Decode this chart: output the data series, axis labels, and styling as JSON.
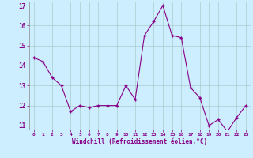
{
  "x": [
    0,
    1,
    2,
    3,
    4,
    5,
    6,
    7,
    8,
    9,
    10,
    11,
    12,
    13,
    14,
    15,
    16,
    17,
    18,
    19,
    20,
    21,
    22,
    23
  ],
  "y": [
    14.4,
    14.2,
    13.4,
    13.0,
    11.7,
    12.0,
    11.9,
    12.0,
    12.0,
    12.0,
    13.0,
    12.3,
    15.5,
    16.2,
    17.0,
    15.5,
    15.4,
    12.9,
    12.4,
    11.0,
    11.3,
    10.7,
    11.4,
    12.0
  ],
  "xlabel": "Windchill (Refroidissement éolien,°C)",
  "ylim": [
    10.8,
    17.2
  ],
  "yticks": [
    11,
    12,
    13,
    14,
    15,
    16,
    17
  ],
  "xticks": [
    0,
    1,
    2,
    3,
    4,
    5,
    6,
    7,
    8,
    9,
    10,
    11,
    12,
    13,
    14,
    15,
    16,
    17,
    18,
    19,
    20,
    21,
    22,
    23
  ],
  "line_color": "#880088",
  "marker_color": "#880088",
  "bg_color": "#cceeff",
  "grid_color": "#aacccc"
}
